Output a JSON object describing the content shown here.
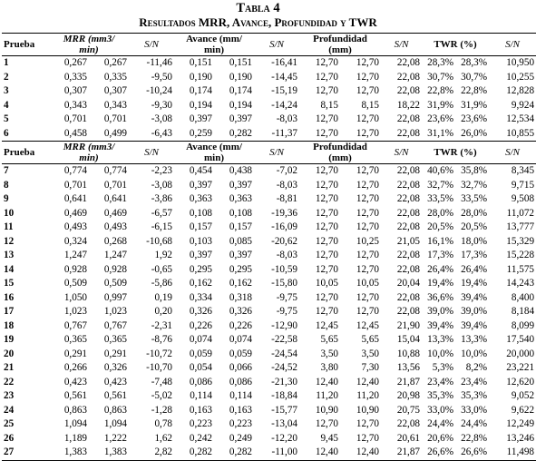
{
  "table": {
    "caption": "Tabla 4",
    "subtitle": "Resultados MRR, Avance, Profundidad y TWR",
    "header": {
      "prueba": "Prueba",
      "mrr_1": "MRR (mm3/",
      "mrr_2": "min)",
      "sn": "S/N",
      "avance_1": "Avance (mm/",
      "avance_2": "min)",
      "prof_1": "Profundidad",
      "prof_2": "(mm)",
      "twr": "TWR (%)"
    },
    "group1": [
      [
        "1",
        "0,267",
        "0,267",
        "-11,46",
        "0,151",
        "0,151",
        "-16,41",
        "12,70",
        "12,70",
        "22,08",
        "28,3%",
        "28,3%",
        "10,950"
      ],
      [
        "2",
        "0,335",
        "0,335",
        "-9,50",
        "0,190",
        "0,190",
        "-14,45",
        "12,70",
        "12,70",
        "22,08",
        "30,7%",
        "30,7%",
        "10,255"
      ],
      [
        "3",
        "0,307",
        "0,307",
        "-10,24",
        "0,174",
        "0,174",
        "-15,19",
        "12,70",
        "12,70",
        "22,08",
        "22,8%",
        "22,8%",
        "12,828"
      ],
      [
        "4",
        "0,343",
        "0,343",
        "-9,30",
        "0,194",
        "0,194",
        "-14,24",
        "8,15",
        "8,15",
        "18,22",
        "31,9%",
        "31,9%",
        "9,924"
      ],
      [
        "5",
        "0,701",
        "0,701",
        "-3,08",
        "0,397",
        "0,397",
        "-8,03",
        "12,70",
        "12,70",
        "22,08",
        "23,6%",
        "23,6%",
        "12,534"
      ],
      [
        "6",
        "0,458",
        "0,499",
        "-6,43",
        "0,259",
        "0,282",
        "-11,37",
        "12,70",
        "12,70",
        "22,08",
        "31,1%",
        "26,0%",
        "10,855"
      ]
    ],
    "group2": [
      [
        "7",
        "0,774",
        "0,774",
        "-2,23",
        "0,454",
        "0,438",
        "-7,02",
        "12,70",
        "12,70",
        "22,08",
        "40,6%",
        "35,8%",
        "8,345"
      ],
      [
        "8",
        "0,701",
        "0,701",
        "-3,08",
        "0,397",
        "0,397",
        "-8,03",
        "12,70",
        "12,70",
        "22,08",
        "32,7%",
        "32,7%",
        "9,715"
      ],
      [
        "9",
        "0,641",
        "0,641",
        "-3,86",
        "0,363",
        "0,363",
        "-8,81",
        "12,70",
        "12,70",
        "22,08",
        "33,5%",
        "33,5%",
        "9,508"
      ],
      [
        "10",
        "0,469",
        "0,469",
        "-6,57",
        "0,108",
        "0,108",
        "-19,36",
        "12,70",
        "12,70",
        "22,08",
        "28,0%",
        "28,0%",
        "11,072"
      ],
      [
        "11",
        "0,493",
        "0,493",
        "-6,15",
        "0,157",
        "0,157",
        "-16,09",
        "12,70",
        "12,70",
        "22,08",
        "20,5%",
        "20,5%",
        "13,777"
      ],
      [
        "12",
        "0,324",
        "0,268",
        "-10,68",
        "0,103",
        "0,085",
        "-20,62",
        "12,70",
        "10,25",
        "21,05",
        "16,1%",
        "18,0%",
        "15,329"
      ],
      [
        "13",
        "1,247",
        "1,247",
        "1,92",
        "0,397",
        "0,397",
        "-8,03",
        "12,70",
        "12,70",
        "22,08",
        "17,3%",
        "17,3%",
        "15,228"
      ],
      [
        "14",
        "0,928",
        "0,928",
        "-0,65",
        "0,295",
        "0,295",
        "-10,59",
        "12,70",
        "12,70",
        "22,08",
        "26,4%",
        "26,4%",
        "11,575"
      ],
      [
        "15",
        "0,509",
        "0,509",
        "-5,86",
        "0,162",
        "0,162",
        "-15,80",
        "10,05",
        "10,05",
        "20,04",
        "19,4%",
        "19,4%",
        "14,243"
      ],
      [
        "16",
        "1,050",
        "0,997",
        "0,19",
        "0,334",
        "0,318",
        "-9,75",
        "12,70",
        "12,70",
        "22,08",
        "36,6%",
        "39,4%",
        "8,400"
      ],
      [
        "17",
        "1,023",
        "1,023",
        "0,20",
        "0,326",
        "0,326",
        "-9,75",
        "12,70",
        "12,70",
        "22,08",
        "39,0%",
        "39,0%",
        "8,184"
      ],
      [
        "18",
        "0,767",
        "0,767",
        "-2,31",
        "0,226",
        "0,226",
        "-12,90",
        "12,45",
        "12,45",
        "21,90",
        "39,4%",
        "39,4%",
        "8,099"
      ],
      [
        "19",
        "0,365",
        "0,365",
        "-8,76",
        "0,074",
        "0,074",
        "-22,58",
        "5,65",
        "5,65",
        "15,04",
        "13,3%",
        "13,3%",
        "17,540"
      ],
      [
        "20",
        "0,291",
        "0,291",
        "-10,72",
        "0,059",
        "0,059",
        "-24,54",
        "3,50",
        "3,50",
        "10,88",
        "10,0%",
        "10,0%",
        "20,000"
      ],
      [
        "21",
        "0,266",
        "0,326",
        "-10,70",
        "0,054",
        "0,066",
        "-24,52",
        "3,80",
        "7,30",
        "13,56",
        "5,3%",
        "8,2%",
        "23,221"
      ],
      [
        "22",
        "0,423",
        "0,423",
        "-7,48",
        "0,086",
        "0,086",
        "-21,30",
        "12,40",
        "12,40",
        "21,87",
        "23,4%",
        "23,4%",
        "12,620"
      ],
      [
        "23",
        "0,561",
        "0,561",
        "-5,02",
        "0,114",
        "0,114",
        "-18,84",
        "11,20",
        "11,20",
        "20,98",
        "35,3%",
        "35,3%",
        "9,052"
      ],
      [
        "24",
        "0,863",
        "0,863",
        "-1,28",
        "0,163",
        "0,163",
        "-15,77",
        "10,90",
        "10,90",
        "20,75",
        "33,0%",
        "33,0%",
        "9,622"
      ],
      [
        "25",
        "1,094",
        "1,094",
        "0,78",
        "0,223",
        "0,223",
        "-13,04",
        "12,70",
        "12,70",
        "22,08",
        "24,4%",
        "24,4%",
        "12,249"
      ],
      [
        "26",
        "1,189",
        "1,222",
        "1,62",
        "0,242",
        "0,249",
        "-12,20",
        "9,45",
        "12,70",
        "20,61",
        "20,6%",
        "22,8%",
        "13,246"
      ],
      [
        "27",
        "1,383",
        "1,383",
        "2,82",
        "0,282",
        "0,282",
        "-11,00",
        "12,40",
        "12,40",
        "21,87",
        "26,6%",
        "26,6%",
        "11,498"
      ]
    ]
  }
}
